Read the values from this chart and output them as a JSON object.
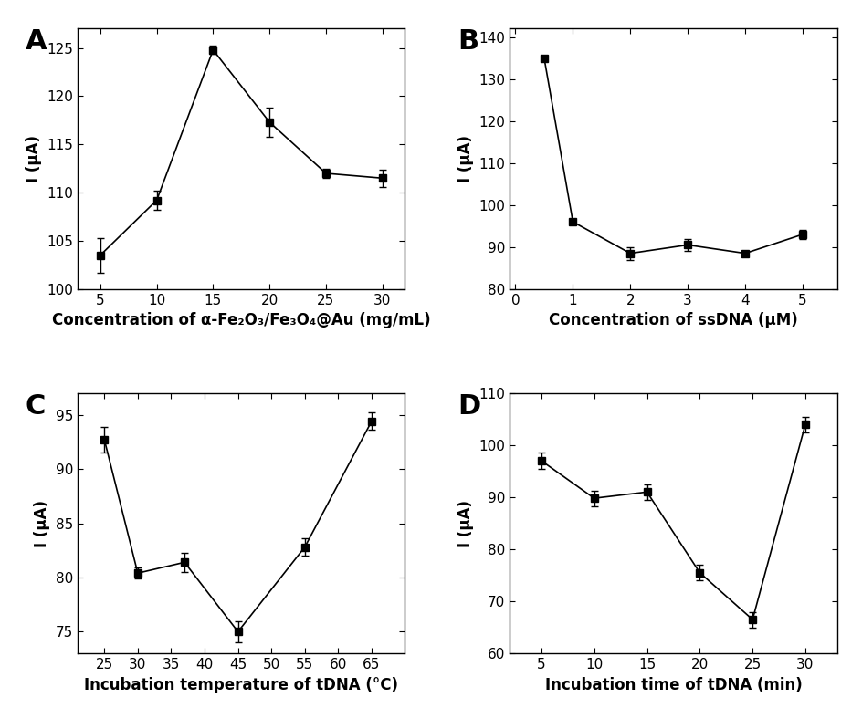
{
  "A": {
    "x": [
      5,
      10,
      15,
      20,
      25,
      30
    ],
    "y": [
      103.5,
      109.2,
      124.8,
      117.3,
      112.0,
      111.5
    ],
    "yerr": [
      1.8,
      1.0,
      0.4,
      1.5,
      0.5,
      0.9
    ],
    "xlabel": "Concentration of α-Fe₂O₃/Fe₃O₄@Au (mg/mL)",
    "ylabel": "I (μA)",
    "ylim": [
      100,
      127
    ],
    "yticks": [
      100,
      105,
      110,
      115,
      120,
      125
    ],
    "xlim": [
      3,
      32
    ],
    "xticks": [
      5,
      10,
      15,
      20,
      25,
      30
    ],
    "label": "A"
  },
  "B": {
    "x": [
      0.5,
      1,
      2,
      3,
      4,
      5
    ],
    "y": [
      135.0,
      96.0,
      88.5,
      90.5,
      88.5,
      93.0
    ],
    "yerr": [
      0.5,
      0.5,
      1.5,
      1.5,
      0.5,
      1.0
    ],
    "xlabel": "Concentration of ssDNA (μM)",
    "ylabel": "I (μA)",
    "ylim": [
      80,
      142
    ],
    "yticks": [
      80,
      90,
      100,
      110,
      120,
      130,
      140
    ],
    "xlim": [
      -0.1,
      5.6
    ],
    "xticks": [
      0,
      1,
      2,
      3,
      4,
      5
    ],
    "label": "B"
  },
  "C": {
    "x": [
      25,
      30,
      37,
      45,
      55,
      65
    ],
    "y": [
      92.7,
      80.4,
      81.4,
      75.0,
      82.8,
      94.4
    ],
    "yerr": [
      1.2,
      0.5,
      0.9,
      1.0,
      0.8,
      0.8
    ],
    "xlabel": "Incubation temperature of tDNA (°C)",
    "ylabel": "I (μA)",
    "ylim": [
      73,
      97
    ],
    "yticks": [
      75,
      80,
      85,
      90,
      95
    ],
    "xlim": [
      21,
      70
    ],
    "xticks": [
      25,
      30,
      35,
      40,
      45,
      50,
      55,
      60,
      65
    ],
    "label": "C"
  },
  "D": {
    "x": [
      5,
      10,
      15,
      20,
      25,
      30
    ],
    "y": [
      97.0,
      89.8,
      91.0,
      75.5,
      66.5,
      104.0
    ],
    "yerr": [
      1.5,
      1.5,
      1.5,
      1.5,
      1.5,
      1.5
    ],
    "xlabel": "Incubation time of tDNA (min)",
    "ylabel": "I (μA)",
    "ylim": [
      60,
      110
    ],
    "yticks": [
      60,
      70,
      80,
      90,
      100,
      110
    ],
    "xlim": [
      2,
      33
    ],
    "xticks": [
      5,
      10,
      15,
      20,
      25,
      30
    ],
    "label": "D"
  },
  "marker": "s",
  "markersize": 6,
  "linewidth": 1.2,
  "color": "black",
  "capsize": 3,
  "elinewidth": 1.0,
  "label_fontsize": 22,
  "axis_label_fontsize": 12,
  "tick_fontsize": 11
}
